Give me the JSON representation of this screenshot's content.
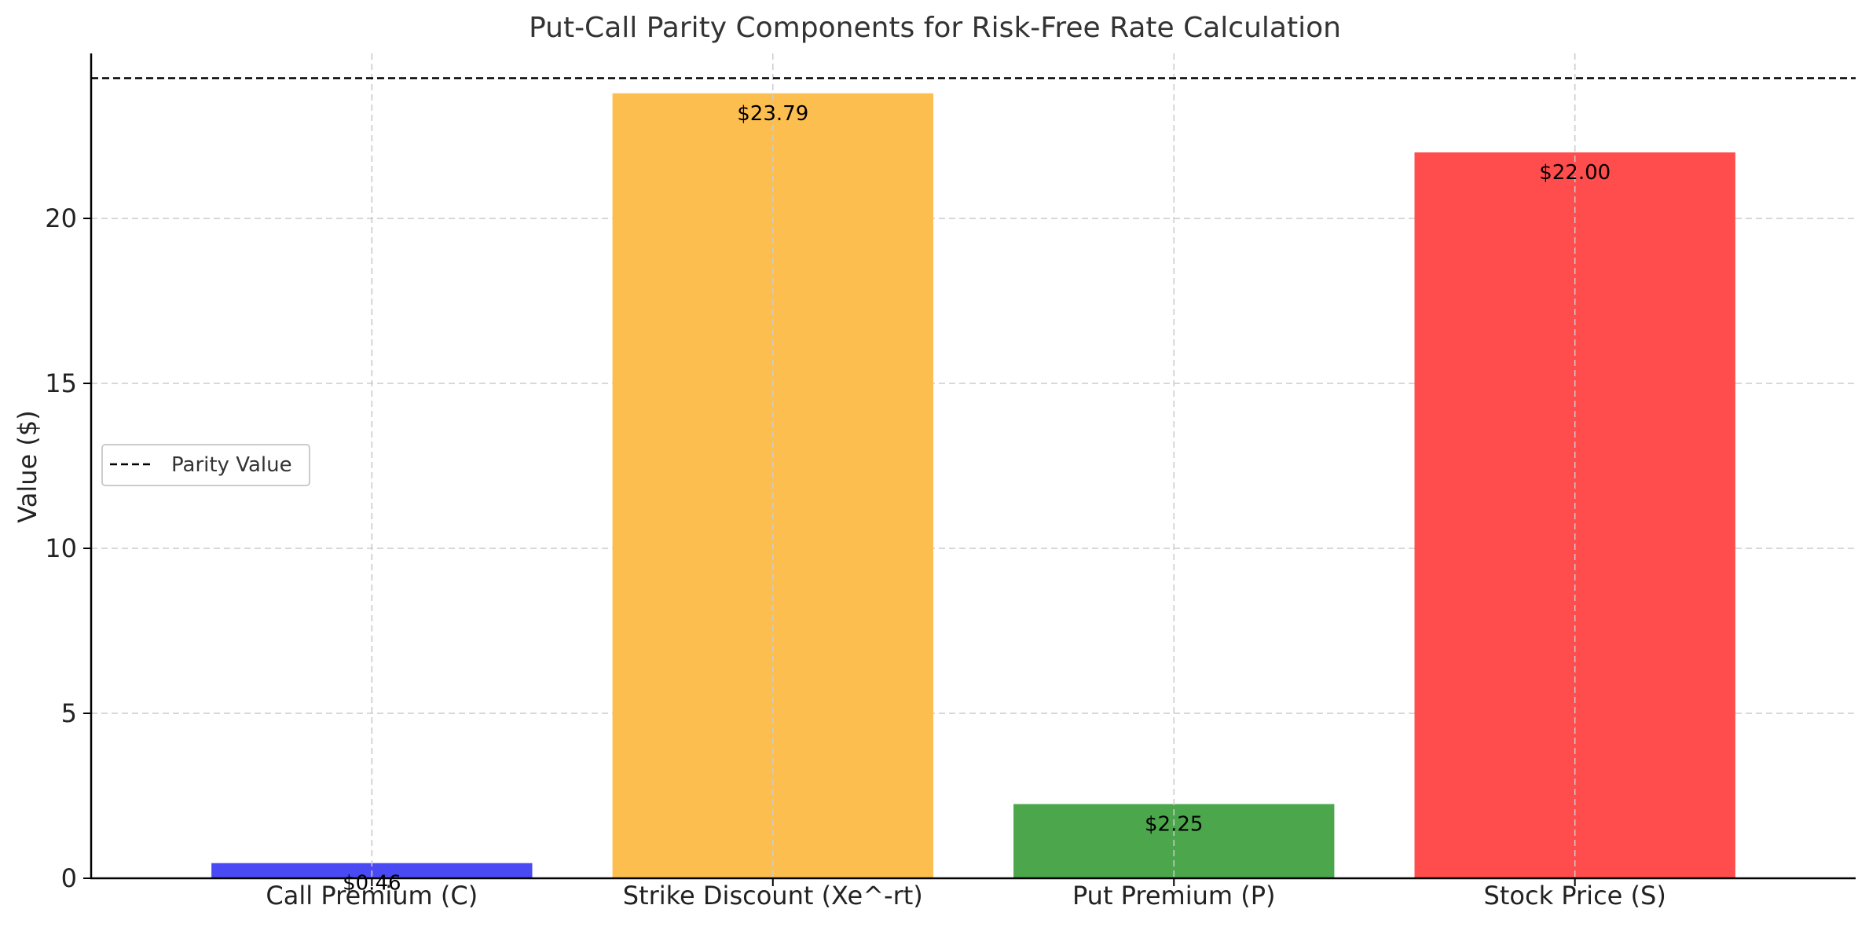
{
  "chart_data": {
    "type": "bar",
    "title": "Put-Call Parity Components for Risk-Free Rate Calculation",
    "xlabel": "",
    "ylabel": "Value ($)",
    "categories": [
      "Call Premium (C)",
      "Strike Discount (Xe^-rt)",
      "Put Premium (P)",
      "Stock Price (S)"
    ],
    "values": [
      0.46,
      23.79,
      2.25,
      22.0
    ],
    "value_labels": [
      "$0.46",
      "$23.79",
      "$2.25",
      "$22.00"
    ],
    "colors": [
      "#4a4af4",
      "#fdbe50",
      "#4ca64c",
      "#ff4c4c"
    ],
    "ylim": [
      0,
      25
    ],
    "yticks": [
      0,
      5,
      10,
      15,
      20
    ],
    "ytick_labels": [
      "0",
      "5",
      "10",
      "15",
      "20"
    ],
    "grid": true,
    "reference_line": {
      "name": "Parity Value",
      "value": 24.25,
      "style": "dashed",
      "color": "#000000"
    },
    "legend": {
      "placement": "center-left",
      "entries": [
        "Parity Value"
      ]
    }
  }
}
